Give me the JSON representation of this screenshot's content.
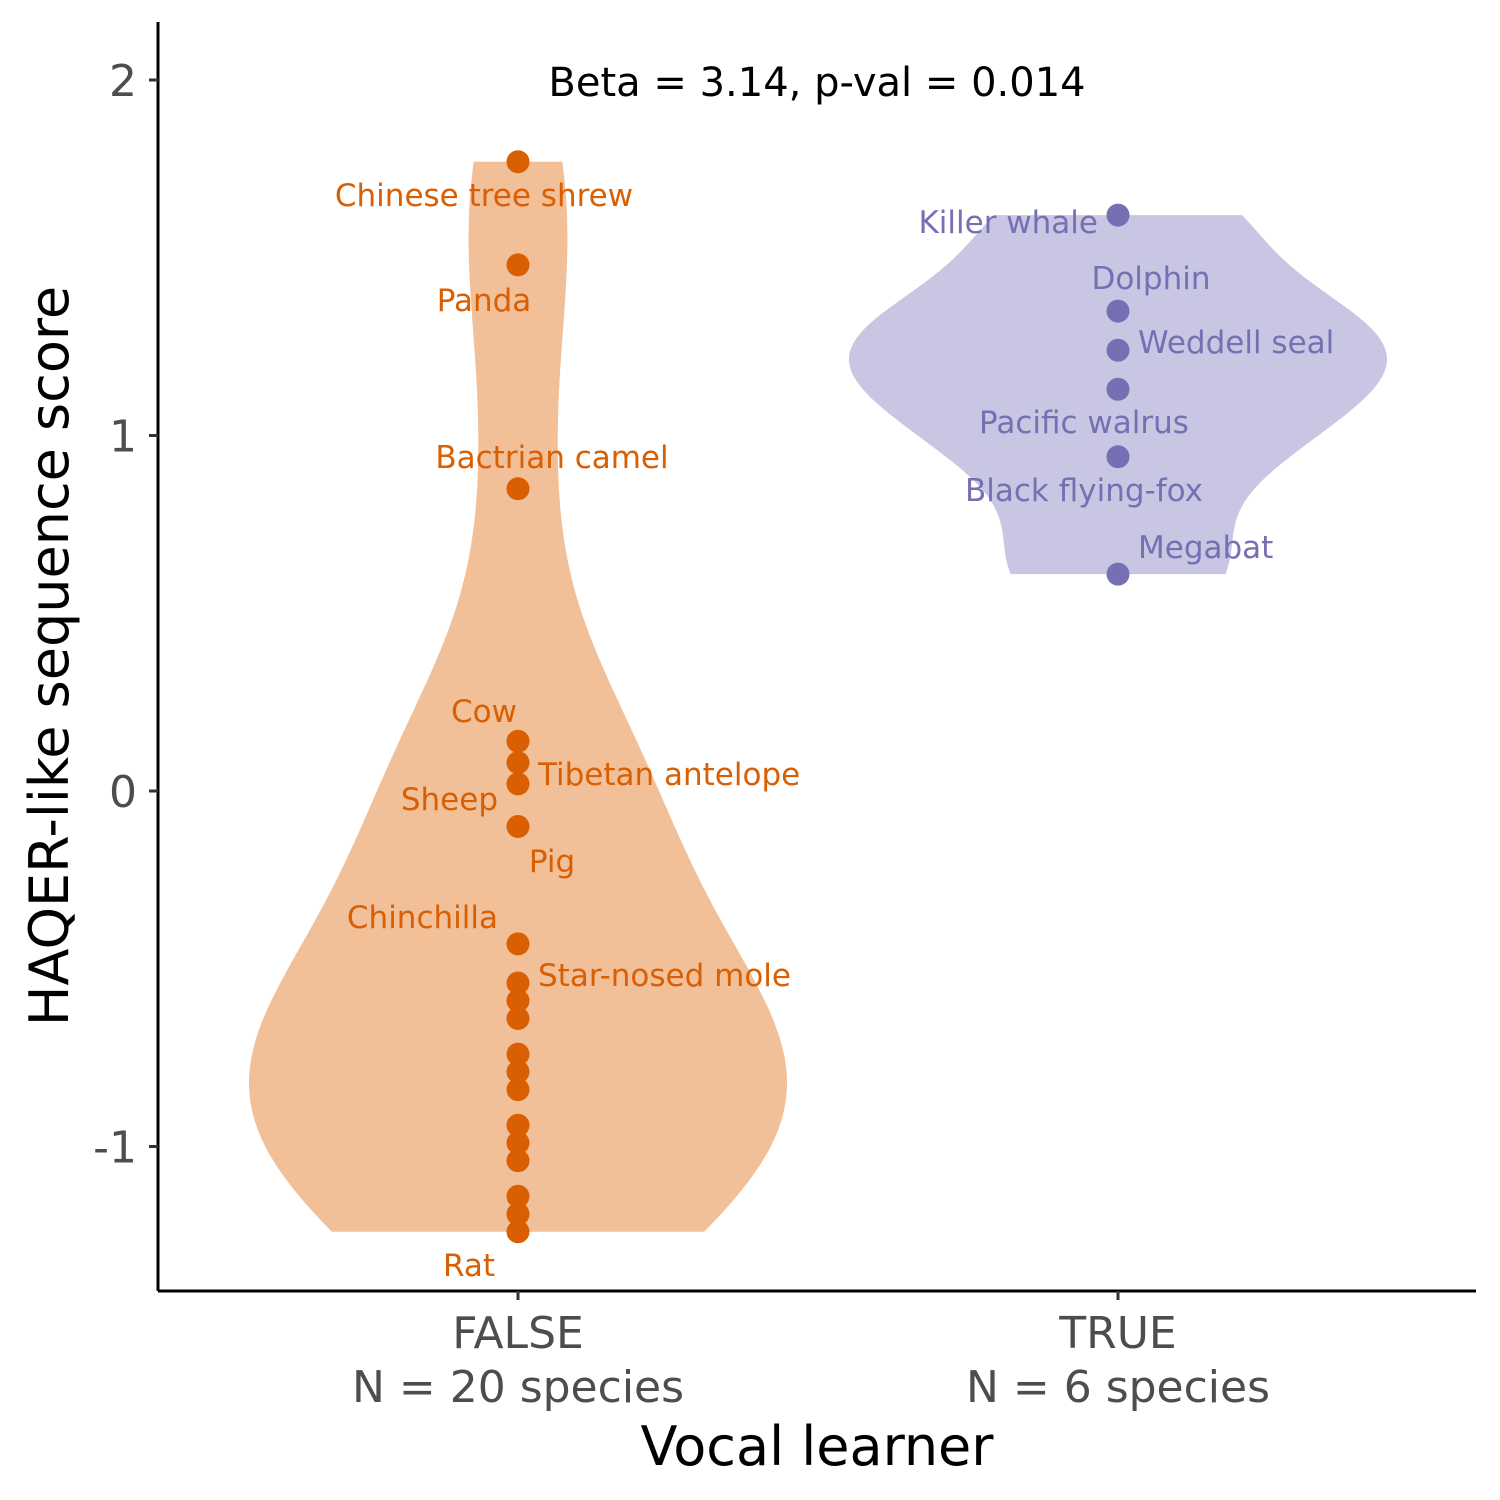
{
  "chart_data": {
    "type": "violin",
    "annotation": "Beta = 3.14, p-val = 0.014",
    "xlabel": "Vocal learner",
    "ylabel": "HAQER-like sequence score",
    "ylim": [
      -1.4,
      2.15
    ],
    "yticks": [
      -1,
      0,
      1,
      2
    ],
    "ytick_labels": [
      "-1",
      "0",
      "1",
      "2"
    ],
    "groups": [
      {
        "category": "FALSE",
        "sublabel": "N = 20 species",
        "violin_color": "#f1bf98",
        "point_color": "#d95f02",
        "values": [
          1.77,
          1.48,
          0.85,
          0.14,
          0.08,
          0.02,
          -0.1,
          -0.43,
          -0.54,
          -0.59,
          -0.64,
          -0.74,
          -0.79,
          -0.84,
          -0.94,
          -0.99,
          -1.04,
          -1.14,
          -1.19,
          -1.24
        ],
        "labels": [
          {
            "text": "Chinese tree shrew",
            "value": 1.77
          },
          {
            "text": "Panda",
            "value": 1.48
          },
          {
            "text": "Bactrian camel",
            "value": 0.85
          },
          {
            "text": "Cow",
            "value": 0.14
          },
          {
            "text": "Tibetan antelope",
            "value": 0.08
          },
          {
            "text": "Sheep",
            "value": 0.02
          },
          {
            "text": "Pig",
            "value": -0.1
          },
          {
            "text": "Chinchilla",
            "value": -0.43
          },
          {
            "text": "Star-nosed mole",
            "value": -0.54
          },
          {
            "text": "Rat",
            "value": -1.24
          }
        ]
      },
      {
        "category": "TRUE",
        "sublabel": "N = 6 species",
        "violin_color": "#c8c6e2",
        "point_color": "#7570b3",
        "values": [
          1.62,
          1.35,
          1.24,
          1.13,
          0.94,
          0.61
        ],
        "labels": [
          {
            "text": "Killer whale",
            "value": 1.62
          },
          {
            "text": "Dolphin",
            "value": 1.35
          },
          {
            "text": "Weddell seal",
            "value": 1.24
          },
          {
            "text": "Pacific walrus",
            "value": 1.13
          },
          {
            "text": "Black flying-fox",
            "value": 0.94
          },
          {
            "text": "Megabat",
            "value": 0.61
          }
        ]
      }
    ]
  }
}
